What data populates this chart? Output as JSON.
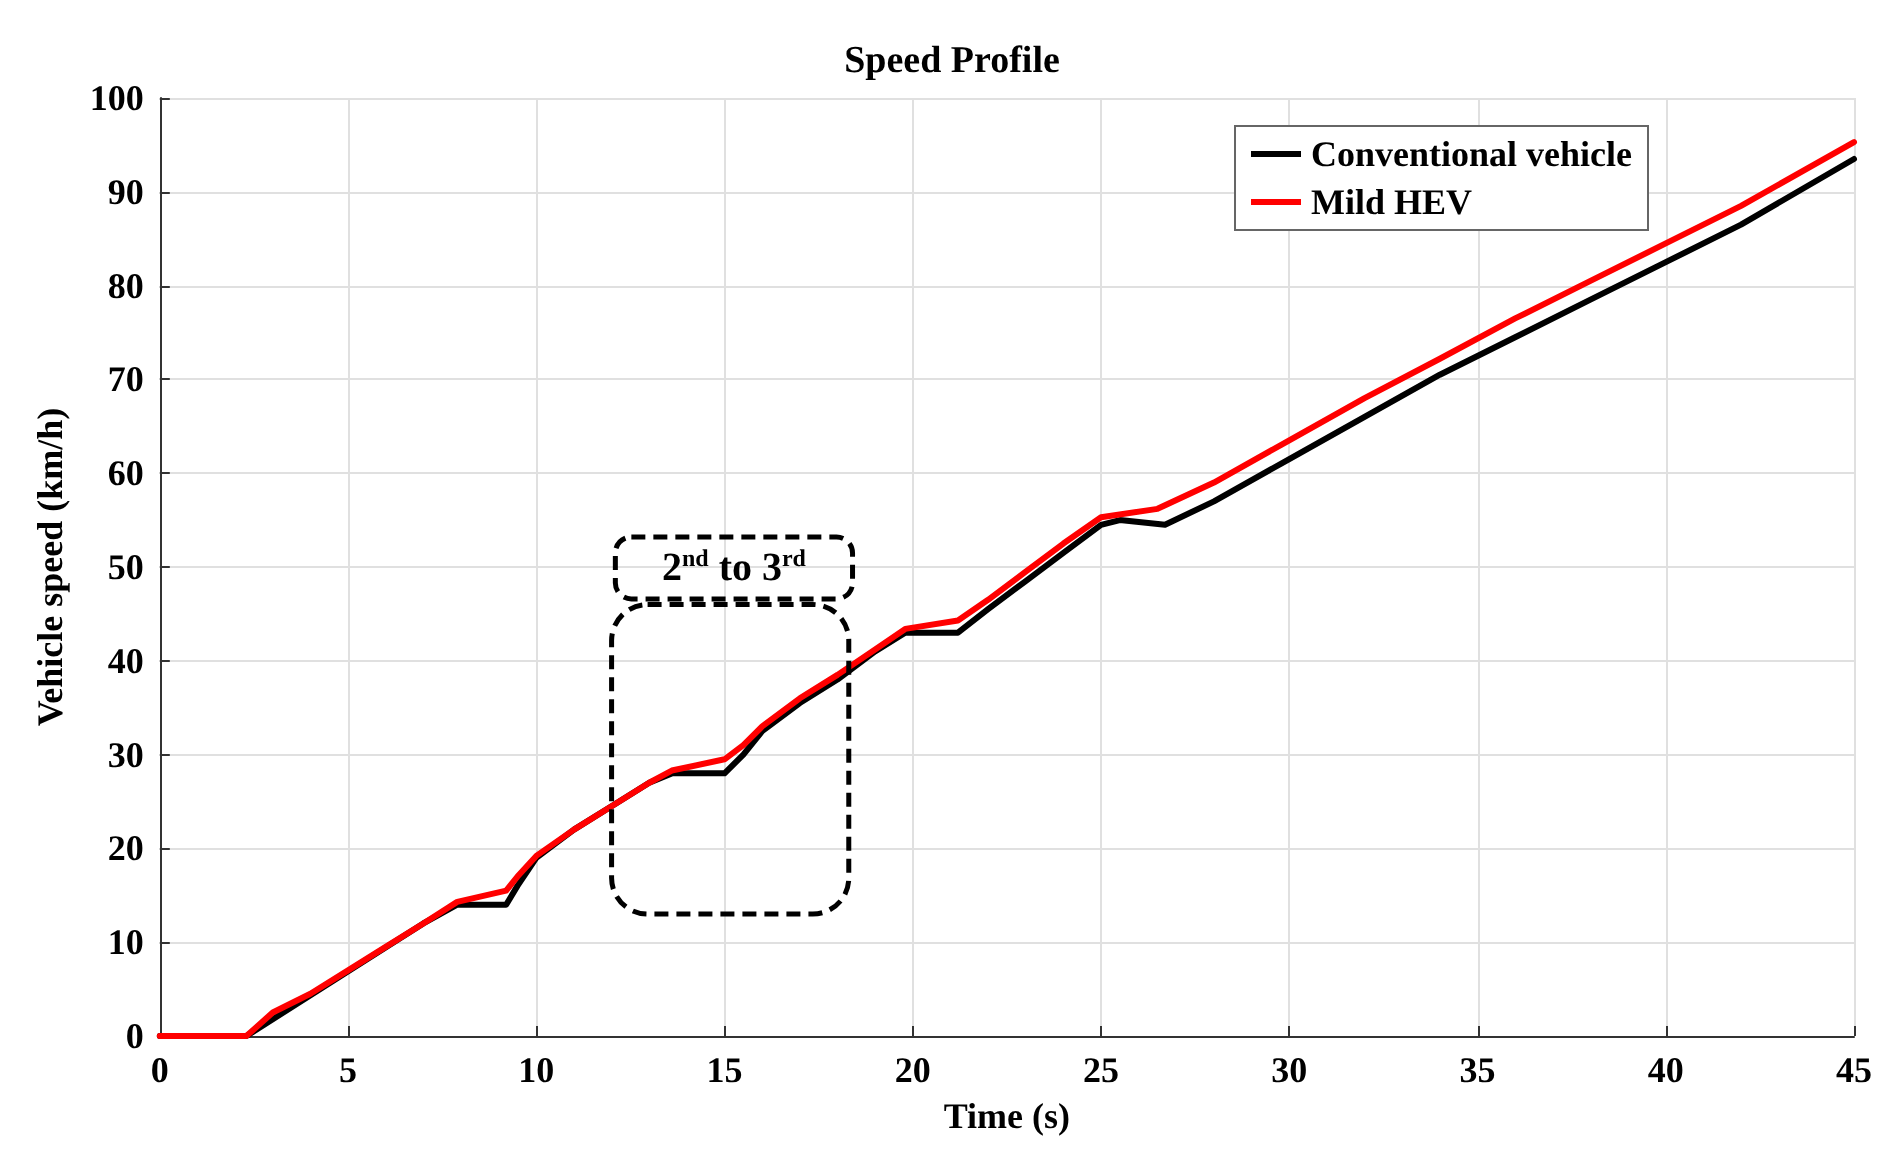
{
  "chart_data": {
    "type": "line",
    "title": "Speed Profile",
    "xlabel": "Time (s)",
    "ylabel": "Vehicle speed (km/h)",
    "xlim": [
      0,
      45
    ],
    "xticks": [
      0,
      5,
      10,
      15,
      20,
      25,
      30,
      35,
      40,
      45
    ],
    "ylim": [
      0,
      100
    ],
    "yticks": [
      0,
      10,
      20,
      30,
      40,
      50,
      60,
      70,
      80,
      90,
      100
    ],
    "grid": true,
    "legend": "top right",
    "marker": "none",
    "line_style": "solid",
    "annotations": [
      "2$^{nd}$ to 3$^{rd}$"
    ],
    "series": [
      {
        "name": "Conventional vehicle",
        "color": "#000000",
        "x": [
          0,
          2.3,
          3,
          4,
          5,
          6,
          7,
          7.9,
          9.2,
          9.5,
          10,
          11,
          12,
          13,
          13.6,
          15,
          15.5,
          16,
          17,
          18,
          19,
          19.8,
          21.2,
          22,
          23,
          24,
          25,
          25.5,
          26.7,
          28,
          30,
          32,
          34,
          36,
          38,
          40,
          42,
          45
        ],
        "values": [
          0,
          0,
          null,
          null,
          null,
          null,
          12,
          14,
          14,
          16,
          19,
          22,
          24.5,
          27,
          28,
          28,
          30,
          32.5,
          35.5,
          38,
          41,
          43,
          43,
          45.5,
          48.5,
          51.5,
          54.5,
          55,
          54.5,
          57,
          61.5,
          66,
          70.5,
          74.5,
          78.5,
          82.5,
          86.5,
          93.5
        ]
      },
      {
        "name": "Mild HEV",
        "color": "#ff0000",
        "x": [
          0,
          2.3,
          3,
          4,
          5,
          6,
          7,
          7.9,
          9.2,
          9.5,
          10,
          11,
          12,
          13,
          13.6,
          15,
          15.5,
          16,
          17,
          18,
          19,
          19.8,
          21.2,
          22,
          23,
          24,
          25,
          26.5,
          28,
          30,
          32,
          34,
          36,
          38,
          40,
          42,
          45
        ],
        "values": [
          0,
          0,
          2.5,
          4.5,
          7,
          9.5,
          12,
          14.3,
          15.5,
          17,
          19.2,
          22,
          24.5,
          27,
          28.3,
          29.5,
          31,
          33,
          36,
          38.5,
          41.2,
          43.4,
          44.3,
          46.5,
          49.5,
          52.5,
          55.3,
          56.2,
          59,
          63.5,
          68,
          72.2,
          76.5,
          80.5,
          84.5,
          88.5,
          95.3
        ]
      }
    ]
  }
}
